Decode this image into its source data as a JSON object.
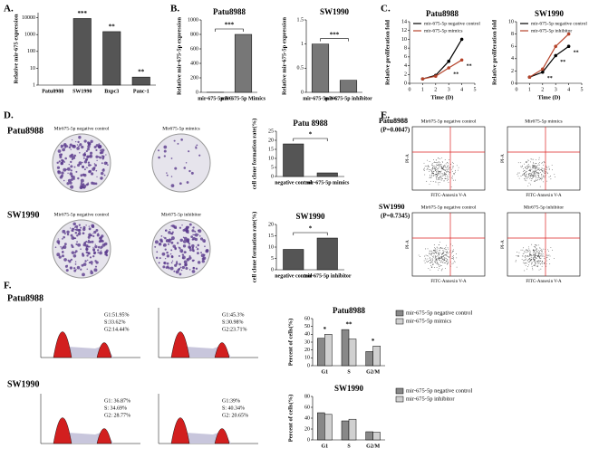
{
  "panels": {
    "letters": [
      "A.",
      "B.",
      "C.",
      "D.",
      "E.",
      "F."
    ],
    "d": {
      "rows": [
        "Patu8988",
        "SW1990"
      ],
      "dish_labels": [
        "Mir675-5p negative control",
        "Mir675-5p mimics",
        "Mir675-5p negative control",
        "Mir675-5p inhibitor"
      ]
    },
    "e": {
      "rows": [
        {
          "name": "Patu8988",
          "p": "(P=0.0047)"
        },
        {
          "name": "SW1990",
          "p": "(P=0.7345)"
        }
      ],
      "plot_titles": [
        "Mir675-5p negative control",
        "Mir675-5p mimics",
        "Mir675-5p negative control",
        "Mir675-5p inhibitor"
      ],
      "x_axis": "FITC-Annexin V-A",
      "y_axis": "PI-A"
    },
    "f": {
      "rows": [
        "Patu8988",
        "SW1990"
      ],
      "histograms": [
        {
          "stats": [
            "G1:51.95%",
            "S:33.62%",
            "G2:14.44%"
          ]
        },
        {
          "stats": [
            "G1:45.3%",
            "S:30.98%",
            "G2:23.71%"
          ]
        },
        {
          "stats": [
            "G1: 36.87%",
            "S: 34.69%",
            "G2: 28.77%"
          ]
        },
        {
          "stats": [
            "G1:39%",
            "S: 40.34%",
            "G2: 20.65%"
          ]
        }
      ]
    }
  },
  "chart_data": [
    {
      "type": "bar",
      "ylabel": "Relative mir-675 expression",
      "log_scale": true,
      "categories": [
        "Patu8988",
        "SW1990",
        "Bxpc3",
        "Panc-1"
      ],
      "values": [
        1,
        9000,
        1500,
        3
      ],
      "color": "#555555",
      "annotations": [
        null,
        "***",
        "**",
        "**"
      ],
      "ylim": [
        1,
        20000
      ],
      "yticks": [
        1,
        10,
        100,
        1000,
        10000
      ]
    },
    {
      "type": "bar",
      "title": "Patu8988",
      "ylabel": "Relative mir-675-5p expression",
      "categories": [
        "mir-675-5p NC",
        "mir-675-5p Mimics"
      ],
      "values": [
        1,
        800
      ],
      "color": "#777777",
      "annotation": "***",
      "ylim": [
        0,
        1000
      ],
      "yticks": [
        0,
        200,
        400,
        600,
        800,
        1000
      ]
    },
    {
      "type": "bar",
      "title": "SW1990",
      "ylabel": "Relative mir-675-5p expression",
      "categories": [
        "mir-675-5p NC",
        "mir-675-5p inhibitor"
      ],
      "values": [
        1,
        0.25
      ],
      "color": "#777777",
      "annotation": "***",
      "ylim": [
        0,
        1.5
      ],
      "yticks": [
        0,
        0.5,
        1,
        1.5
      ]
    },
    {
      "type": "line",
      "title": "Patu8988",
      "xlabel": "Time (D)",
      "ylabel": "Relative proliferation fold",
      "x": [
        1,
        2,
        3,
        4
      ],
      "series": [
        {
          "name": "mir-675-5p negative control",
          "color": "#000000",
          "values": [
            1,
            1.8,
            5,
            10
          ]
        },
        {
          "name": "mir-675-5p mimics",
          "color": "#b5432a",
          "values": [
            1,
            1.6,
            3.5,
            5.3
          ],
          "annotations": [
            null,
            null,
            "**",
            "**"
          ]
        }
      ],
      "xlim": [
        0,
        5
      ],
      "xticks": [
        0,
        1,
        2,
        3,
        4,
        5
      ],
      "ylim": [
        0,
        14
      ],
      "yticks": [
        0,
        2,
        4,
        6,
        8,
        10,
        12,
        14
      ]
    },
    {
      "type": "line",
      "title": "SW1990",
      "xlabel": "Time (D)",
      "ylabel": "Relative proliferation fold",
      "x": [
        1,
        2,
        3,
        4
      ],
      "series": [
        {
          "name": "mir-675-5p negative control",
          "color": "#000000",
          "values": [
            1,
            1.8,
            4.5,
            6
          ],
          "annotations": [
            null,
            "**",
            "**",
            "**"
          ]
        },
        {
          "name": "mir-675-5p inhibitor",
          "color": "#b5432a",
          "values": [
            1,
            2.3,
            6,
            8
          ]
        }
      ],
      "xlim": [
        0,
        5
      ],
      "xticks": [
        0,
        1,
        2,
        3,
        4,
        5
      ],
      "ylim": [
        0,
        10
      ],
      "yticks": [
        0,
        2,
        4,
        6,
        8,
        10
      ]
    },
    {
      "type": "bar",
      "title": "Patu 8988",
      "ylabel": "cell clone formation rate(%)",
      "categories": [
        "negative control",
        "mir-675-5p mimics"
      ],
      "values": [
        18,
        2
      ],
      "color": "#555555",
      "annotation": "*",
      "ylim": [
        0,
        25
      ],
      "yticks": [
        0,
        5,
        10,
        15,
        20,
        25
      ]
    },
    {
      "type": "bar",
      "title": "SW1990",
      "ylabel": "cell clone formation rate(%)",
      "categories": [
        "negative control",
        "mir-675-5p inhibitor"
      ],
      "values": [
        9,
        14
      ],
      "color": "#555555",
      "annotation": "*",
      "ylim": [
        0,
        20
      ],
      "yticks": [
        0,
        5,
        10,
        15,
        20
      ]
    },
    {
      "type": "bar",
      "title": "Patu8988",
      "ylabel": "Percent of cells(%)",
      "categories": [
        "G1",
        "S",
        "G2/M"
      ],
      "series": [
        {
          "name": "mir-675-5p negative control",
          "color": "#888888",
          "values": [
            35,
            46,
            18
          ]
        },
        {
          "name": "mir-675-5p mimics",
          "color": "#d0d0d0",
          "values": [
            40,
            34,
            25
          ]
        }
      ],
      "annotations": [
        "*",
        "**",
        "*"
      ],
      "ylim": [
        0,
        60
      ],
      "yticks": [
        0,
        10,
        20,
        30,
        40,
        50,
        60
      ]
    },
    {
      "type": "bar",
      "title": "SW1990",
      "ylabel": "Percent of cells(%)",
      "categories": [
        "G1",
        "S",
        "G2/M"
      ],
      "series": [
        {
          "name": "mir-675-5p negative control",
          "color": "#888888",
          "values": [
            50,
            35,
            15
          ]
        },
        {
          "name": "mir-675-5p inhibitor",
          "color": "#d0d0d0",
          "values": [
            47,
            38,
            14
          ]
        }
      ],
      "ylim": [
        0,
        80
      ],
      "yticks": [
        0,
        20,
        40,
        60,
        80
      ]
    }
  ]
}
